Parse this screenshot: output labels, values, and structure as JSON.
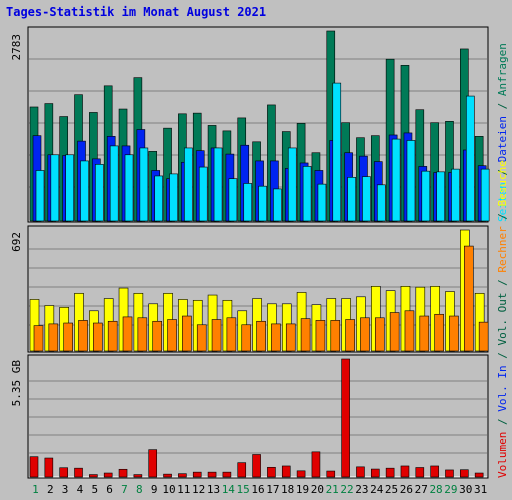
{
  "title": "Tages-Statistik im Monat August 2021",
  "chart_data": [
    {
      "type": "bar",
      "panel": "top",
      "ytick_label": "2783",
      "ymax": 2783,
      "grid": true,
      "categories": [
        "1",
        "2",
        "3",
        "4",
        "5",
        "6",
        "7",
        "8",
        "9",
        "10",
        "11",
        "12",
        "13",
        "14",
        "15",
        "16",
        "17",
        "18",
        "19",
        "20",
        "21",
        "22",
        "23",
        "24",
        "25",
        "26",
        "27",
        "28",
        "29",
        "30",
        "31"
      ],
      "series": [
        {
          "name": "Anfragen",
          "color": "#007a57",
          "values": [
            1670,
            1720,
            1530,
            1850,
            1590,
            1980,
            1640,
            2100,
            1020,
            1360,
            1570,
            1580,
            1400,
            1320,
            1510,
            1160,
            1700,
            1310,
            1430,
            1000,
            2783,
            1440,
            1220,
            1250,
            2370,
            2280,
            1630,
            1440,
            1460,
            2520,
            1240
          ]
        },
        {
          "name": "Dateien",
          "color": "#0024f0",
          "values": [
            1250,
            970,
            960,
            1170,
            910,
            1240,
            1100,
            1340,
            740,
            620,
            860,
            1030,
            1070,
            980,
            1110,
            880,
            880,
            770,
            850,
            740,
            1180,
            1000,
            950,
            870,
            1260,
            1290,
            800,
            710,
            710,
            1040,
            810
          ]
        },
        {
          "name": "Seiten",
          "color": "#00e0ff",
          "values": [
            740,
            970,
            970,
            880,
            830,
            1100,
            970,
            1070,
            660,
            690,
            1070,
            790,
            1070,
            620,
            550,
            510,
            470,
            1070,
            800,
            540,
            2020,
            640,
            650,
            530,
            1200,
            1180,
            730,
            720,
            760,
            1830,
            760
          ]
        }
      ]
    },
    {
      "type": "bar",
      "panel": "middle",
      "ytick_label": "692",
      "ymax": 692,
      "grid": true,
      "categories": [
        "1",
        "2",
        "3",
        "4",
        "5",
        "6",
        "7",
        "8",
        "9",
        "10",
        "11",
        "12",
        "13",
        "14",
        "15",
        "16",
        "17",
        "18",
        "19",
        "20",
        "21",
        "22",
        "23",
        "24",
        "25",
        "26",
        "27",
        "28",
        "29",
        "30",
        "31"
      ],
      "series": [
        {
          "name": "Besuche",
          "color": "#ffff00",
          "values": [
            295,
            260,
            250,
            330,
            230,
            300,
            360,
            330,
            270,
            330,
            295,
            290,
            320,
            290,
            230,
            300,
            270,
            270,
            335,
            265,
            300,
            300,
            310,
            370,
            345,
            370,
            365,
            370,
            340,
            692,
            330
          ]
        },
        {
          "name": "Rechner",
          "color": "#ff8000",
          "values": [
            145,
            155,
            160,
            175,
            160,
            170,
            195,
            190,
            170,
            180,
            200,
            150,
            180,
            190,
            150,
            170,
            155,
            155,
            185,
            175,
            175,
            180,
            190,
            190,
            220,
            230,
            200,
            210,
            200,
            600,
            165
          ]
        }
      ]
    },
    {
      "type": "bar",
      "panel": "bottom",
      "ytick_label": "5.35 GB",
      "ymax": 5.35,
      "grid": true,
      "categories": [
        "1",
        "2",
        "3",
        "4",
        "5",
        "6",
        "7",
        "8",
        "9",
        "10",
        "11",
        "12",
        "13",
        "14",
        "15",
        "16",
        "17",
        "18",
        "19",
        "20",
        "21",
        "22",
        "23",
        "24",
        "25",
        "26",
        "27",
        "28",
        "29",
        "30",
        "31"
      ],
      "series": [
        {
          "name": "Volumen",
          "color": "#e00000",
          "values": [
            0.92,
            0.86,
            0.42,
            0.4,
            0.11,
            0.18,
            0.35,
            0.11,
            1.24,
            0.13,
            0.15,
            0.22,
            0.22,
            0.22,
            0.65,
            1.02,
            0.44,
            0.5,
            0.28,
            1.14,
            0.27,
            5.35,
            0.46,
            0.36,
            0.4,
            0.5,
            0.43,
            0.5,
            0.32,
            0.33,
            0.18
          ]
        }
      ]
    }
  ],
  "side_labels": {
    "upper": [
      {
        "text": "Seiten",
        "color": "#00e0ff"
      },
      {
        "text": " / ",
        "color": "#006040"
      },
      {
        "text": "Dateien",
        "color": "#0024f0"
      },
      {
        "text": " / ",
        "color": "#006040"
      },
      {
        "text": "Anfragen",
        "color": "#007a57"
      }
    ],
    "lower": [
      {
        "text": "Volumen",
        "color": "#e00000"
      },
      {
        "text": " / ",
        "color": "#006040"
      },
      {
        "text": "Vol. In",
        "color": "#0024f0"
      },
      {
        "text": " / ",
        "color": "#006040"
      },
      {
        "text": "Vol. Out",
        "color": "#006040"
      },
      {
        "text": " / ",
        "color": "#006040"
      },
      {
        "text": "Rechner",
        "color": "#ff8000"
      },
      {
        "text": " / ",
        "color": "#006040"
      },
      {
        "text": "Besuche",
        "color": "#ffff00"
      }
    ]
  },
  "weekend_days": [
    "1",
    "7",
    "8",
    "14",
    "15",
    "21",
    "22",
    "28",
    "29"
  ],
  "colors": {
    "weekday": "#000000",
    "weekend": "#008040",
    "grid": "#808080",
    "background": "#c0c0c0"
  }
}
